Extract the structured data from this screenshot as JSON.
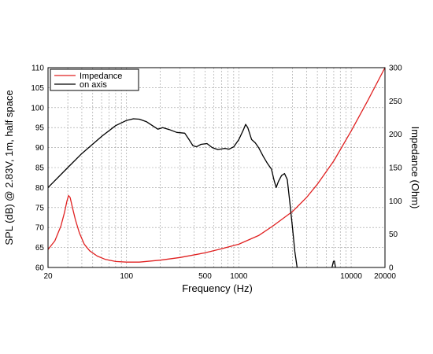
{
  "chart_data": {
    "type": "line",
    "title": "",
    "xlabel": "Frequency (Hz)",
    "ylabel_left": "SPL (dB) @ 2.83V, 1m, half space",
    "ylabel_right": "Impedance (Ohm)",
    "x_scale": "log",
    "xlim": [
      20,
      20000
    ],
    "ylim_left": [
      60,
      110
    ],
    "ylim_right": [
      0,
      300
    ],
    "x_ticks": [
      {
        "value": 20,
        "label": "20"
      },
      {
        "value": 100,
        "label": "100"
      },
      {
        "value": 500,
        "label": "500"
      },
      {
        "value": 1000,
        "label": "1000"
      },
      {
        "value": 10000,
        "label": "10000"
      },
      {
        "value": 20000,
        "label": "20000"
      }
    ],
    "y_left_ticks": [
      "60",
      "65",
      "70",
      "75",
      "80",
      "85",
      "90",
      "95",
      "100",
      "105",
      "110"
    ],
    "y_right_ticks": [
      "0",
      "50",
      "100",
      "150",
      "200",
      "250",
      "300"
    ],
    "grid": true,
    "legend_position": "top-left",
    "series": [
      {
        "name": "Impedance",
        "color": "#e02020",
        "axis": "right",
        "points": [
          [
            20,
            27
          ],
          [
            23,
            40
          ],
          [
            26,
            62
          ],
          [
            28,
            82
          ],
          [
            29.5,
            100
          ],
          [
            30.5,
            108
          ],
          [
            31.5,
            105
          ],
          [
            33,
            90
          ],
          [
            35,
            72
          ],
          [
            38,
            52
          ],
          [
            42,
            35
          ],
          [
            47,
            25
          ],
          [
            55,
            17
          ],
          [
            65,
            12
          ],
          [
            80,
            9
          ],
          [
            100,
            8
          ],
          [
            130,
            8
          ],
          [
            200,
            11
          ],
          [
            300,
            15
          ],
          [
            500,
            22
          ],
          [
            700,
            28
          ],
          [
            1000,
            35
          ],
          [
            1500,
            48
          ],
          [
            2000,
            62
          ],
          [
            3000,
            84
          ],
          [
            4000,
            105
          ],
          [
            5000,
            125
          ],
          [
            7000,
            160
          ],
          [
            10000,
            205
          ],
          [
            14000,
            250
          ],
          [
            20000,
            300
          ]
        ]
      },
      {
        "name": "on axis",
        "color": "#000000",
        "axis": "left",
        "points": [
          [
            20,
            80
          ],
          [
            30,
            85
          ],
          [
            40,
            88.5
          ],
          [
            60,
            92.8
          ],
          [
            80,
            95.5
          ],
          [
            100,
            96.8
          ],
          [
            115,
            97.2
          ],
          [
            130,
            97.1
          ],
          [
            150,
            96.5
          ],
          [
            170,
            95.5
          ],
          [
            190,
            94.6
          ],
          [
            210,
            95
          ],
          [
            240,
            94.5
          ],
          [
            280,
            93.8
          ],
          [
            330,
            93.6
          ],
          [
            360,
            92
          ],
          [
            390,
            90.5
          ],
          [
            420,
            90.2
          ],
          [
            460,
            90.8
          ],
          [
            520,
            91
          ],
          [
            580,
            90
          ],
          [
            650,
            89.5
          ],
          [
            750,
            89.8
          ],
          [
            820,
            89.6
          ],
          [
            900,
            90.2
          ],
          [
            1000,
            92
          ],
          [
            1100,
            94.5
          ],
          [
            1150,
            95.8
          ],
          [
            1200,
            95
          ],
          [
            1300,
            92
          ],
          [
            1400,
            91.2
          ],
          [
            1500,
            90
          ],
          [
            1650,
            87.8
          ],
          [
            1800,
            86
          ],
          [
            1950,
            84.6
          ],
          [
            2050,
            82
          ],
          [
            2150,
            80
          ],
          [
            2250,
            81.5
          ],
          [
            2400,
            83
          ],
          [
            2550,
            83.5
          ],
          [
            2700,
            82
          ],
          [
            2850,
            76
          ],
          [
            3000,
            70
          ],
          [
            3150,
            64
          ],
          [
            3300,
            60
          ]
        ]
      },
      {
        "name": "on axis",
        "color": "#000000",
        "axis": "left",
        "legend": false,
        "points": [
          [
            6750,
            60
          ],
          [
            6950,
            61.5
          ],
          [
            7100,
            61.6
          ],
          [
            7250,
            60
          ]
        ]
      }
    ]
  }
}
